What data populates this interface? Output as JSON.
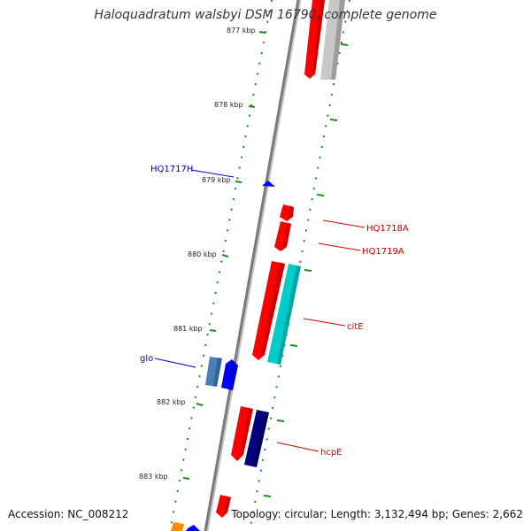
{
  "title": "Haloquadratum walsbyi DSM 16790, complete genome",
  "footer": {
    "accession": "Accession: NC_008212",
    "topology": "Topology: circular; Length: 3,132,494 bp; Genes: 2,662"
  },
  "colors": {
    "backbone": "#808080",
    "tick": "#1a8a1a",
    "red": "#ff0000",
    "blue": "#0000ff",
    "darkblue": "#000080",
    "cyan": "#00c8c8",
    "steelblue": "#4682b4",
    "grey": "#c0c0c0",
    "orange": "#ff8c00"
  },
  "ticks": [
    "877 kbp",
    "878 kbp",
    "879 kbp",
    "880 kbp",
    "881 kbp",
    "882 kbp",
    "883 kbp"
  ],
  "labels": {
    "hq1717h": "HQ1717H",
    "hq1718a": "HQ1718A",
    "hq1719a": "HQ1719A",
    "cite": "citE",
    "glo": "glo",
    "hcpe": "hcpE"
  }
}
